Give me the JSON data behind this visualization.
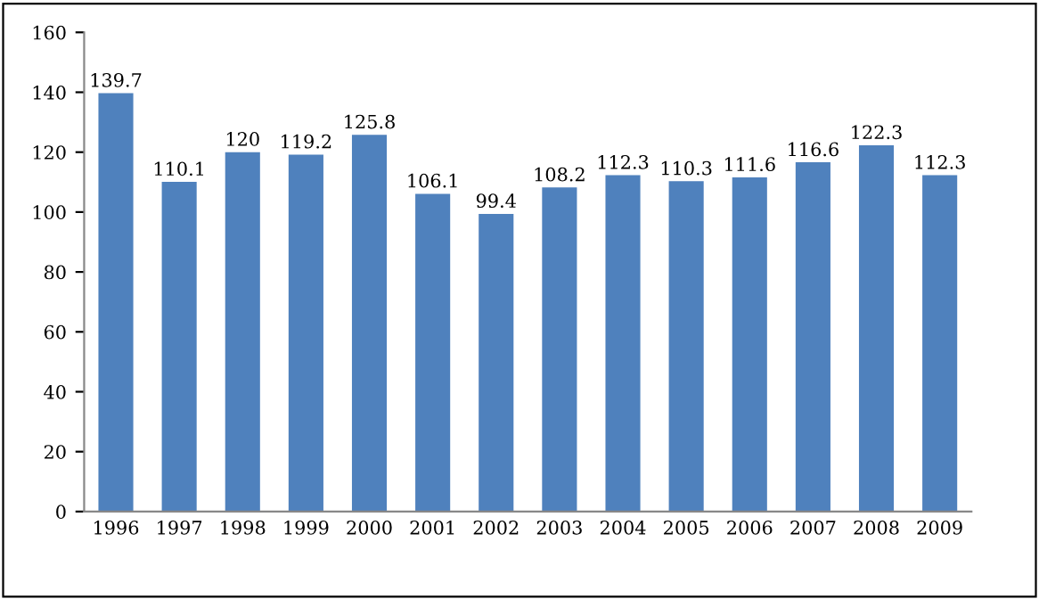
{
  "chart_data": {
    "type": "bar",
    "categories": [
      "1996",
      "1997",
      "1998",
      "1999",
      "2000",
      "2001",
      "2002",
      "2003",
      "2004",
      "2005",
      "2006",
      "2007",
      "2008",
      "2009"
    ],
    "values": [
      139.7,
      110.1,
      120,
      119.2,
      125.8,
      106.1,
      99.4,
      108.2,
      112.3,
      110.3,
      111.6,
      116.6,
      122.3,
      112.3
    ],
    "value_labels": [
      "139.7",
      "110.1",
      "120",
      "119.2",
      "125.8",
      "106.1",
      "99.4",
      "108.2",
      "112.3",
      "110.3",
      "111.6",
      "116.6",
      "122.3",
      "112.3"
    ],
    "color": "#4f81bd",
    "ylim": [
      0,
      160
    ],
    "yticks": [
      0,
      20,
      40,
      60,
      80,
      100,
      120,
      140,
      160
    ],
    "grid": false
  }
}
